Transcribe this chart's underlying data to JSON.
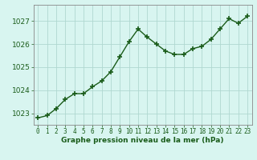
{
  "x": [
    0,
    1,
    2,
    3,
    4,
    5,
    6,
    7,
    8,
    9,
    10,
    11,
    12,
    13,
    14,
    15,
    16,
    17,
    18,
    19,
    20,
    21,
    22,
    23
  ],
  "y": [
    1022.8,
    1022.9,
    1023.2,
    1023.6,
    1023.85,
    1023.85,
    1024.15,
    1024.4,
    1024.8,
    1025.45,
    1026.1,
    1026.65,
    1026.3,
    1026.0,
    1025.7,
    1025.55,
    1025.55,
    1025.8,
    1025.9,
    1026.2,
    1026.65,
    1027.1,
    1026.9,
    1027.2
  ],
  "line_color": "#1a5c1a",
  "marker_color": "#1a5c1a",
  "bg_color": "#d8f5f0",
  "grid_color": "#b0d8d0",
  "xlabel": "Graphe pression niveau de la mer (hPa)",
  "xlabel_color": "#1a5c1a",
  "tick_color": "#1a5c1a",
  "ylim_min": 1022.5,
  "ylim_max": 1027.7,
  "yticks": [
    1023,
    1024,
    1025,
    1026,
    1027
  ],
  "xticks": [
    0,
    1,
    2,
    3,
    4,
    5,
    6,
    7,
    8,
    9,
    10,
    11,
    12,
    13,
    14,
    15,
    16,
    17,
    18,
    19,
    20,
    21,
    22,
    23
  ],
  "axis_color": "#888888",
  "marker_size": 4.0,
  "line_width": 1.0
}
